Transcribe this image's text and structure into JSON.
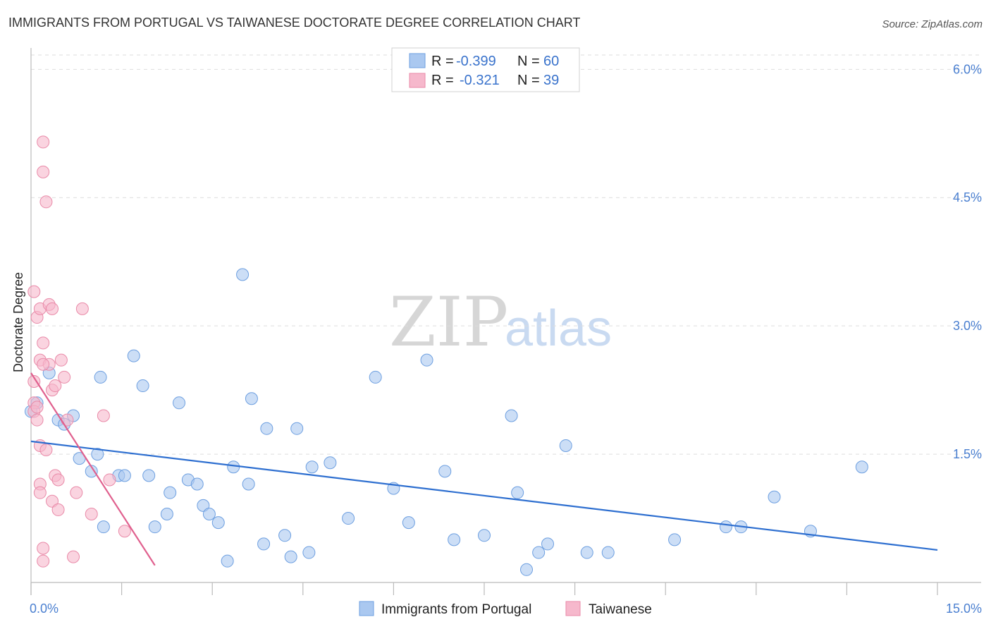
{
  "title": "IMMIGRANTS FROM PORTUGAL VS TAIWANESE DOCTORATE DEGREE CORRELATION CHART",
  "source": "Source: ZipAtlas.com",
  "watermark": {
    "zip": "ZIP",
    "atlas": "atlas"
  },
  "legend_top": [
    {
      "r_label": "R =",
      "r_value": "-0.399",
      "n_label": "N =",
      "n_value": "60"
    },
    {
      "r_label": "R =",
      "r_value": "-0.321",
      "n_label": "N =",
      "n_value": "39"
    }
  ],
  "legend_bottom": [
    "Immigrants from Portugal",
    "Taiwanese"
  ],
  "colors": {
    "blue_fill": "#aac8f0",
    "blue_stroke": "#6d9fe0",
    "blue_line": "#2e6fd0",
    "pink_fill": "#f6b8cc",
    "pink_stroke": "#e98aa8",
    "pink_line": "#e0608e",
    "grid": "#dddddd",
    "axis": "#bbbbbb",
    "tick_label": "#4a7fd0"
  },
  "chart_data": {
    "type": "scatter",
    "title": "IMMIGRANTS FROM PORTUGAL VS TAIWANESE DOCTORATE DEGREE CORRELATION CHART",
    "xlabel": "",
    "ylabel": "Doctorate Degree",
    "xlim": [
      0,
      15
    ],
    "ylim": [
      0,
      6.25
    ],
    "x_tick_labels": [
      "0.0%",
      "15.0%"
    ],
    "y_ticks": [
      1.5,
      3.0,
      4.5,
      6.0
    ],
    "y_tick_labels": [
      "1.5%",
      "3.0%",
      "4.5%",
      "6.0%"
    ],
    "grid": "horizontal dashed",
    "legend_position": "top-center",
    "series": [
      {
        "name": "Immigrants from Portugal",
        "color": "#aac8f0",
        "r": -0.399,
        "n": 60,
        "points": [
          [
            0.0,
            2.0
          ],
          [
            0.1,
            2.1
          ],
          [
            0.3,
            2.45
          ],
          [
            0.45,
            1.9
          ],
          [
            0.55,
            1.85
          ],
          [
            0.7,
            1.95
          ],
          [
            0.8,
            1.45
          ],
          [
            1.0,
            1.3
          ],
          [
            1.1,
            1.5
          ],
          [
            1.15,
            2.4
          ],
          [
            1.2,
            0.65
          ],
          [
            1.45,
            1.25
          ],
          [
            1.55,
            1.25
          ],
          [
            1.7,
            2.65
          ],
          [
            1.85,
            2.3
          ],
          [
            1.95,
            1.25
          ],
          [
            2.05,
            0.65
          ],
          [
            2.25,
            0.8
          ],
          [
            2.3,
            1.05
          ],
          [
            2.45,
            2.1
          ],
          [
            2.6,
            1.2
          ],
          [
            2.75,
            1.15
          ],
          [
            2.85,
            0.9
          ],
          [
            2.95,
            0.8
          ],
          [
            3.1,
            0.7
          ],
          [
            3.25,
            0.25
          ],
          [
            3.35,
            1.35
          ],
          [
            3.5,
            3.6
          ],
          [
            3.6,
            1.15
          ],
          [
            3.65,
            2.15
          ],
          [
            3.85,
            0.45
          ],
          [
            3.9,
            1.8
          ],
          [
            4.2,
            0.55
          ],
          [
            4.3,
            0.3
          ],
          [
            4.4,
            1.8
          ],
          [
            4.6,
            0.35
          ],
          [
            4.65,
            1.35
          ],
          [
            4.95,
            1.4
          ],
          [
            5.25,
            0.75
          ],
          [
            5.7,
            2.4
          ],
          [
            6.0,
            1.1
          ],
          [
            6.25,
            0.7
          ],
          [
            6.55,
            2.6
          ],
          [
            6.85,
            1.3
          ],
          [
            7.0,
            0.5
          ],
          [
            7.5,
            0.55
          ],
          [
            7.95,
            1.95
          ],
          [
            8.05,
            1.05
          ],
          [
            8.2,
            0.15
          ],
          [
            8.4,
            0.35
          ],
          [
            8.55,
            0.45
          ],
          [
            8.85,
            1.6
          ],
          [
            9.2,
            0.35
          ],
          [
            9.55,
            0.35
          ],
          [
            10.65,
            0.5
          ],
          [
            11.5,
            0.65
          ],
          [
            11.75,
            0.65
          ],
          [
            12.3,
            1.0
          ],
          [
            12.9,
            0.6
          ],
          [
            13.75,
            1.35
          ]
        ],
        "trend": {
          "x": [
            0.0,
            15.0
          ],
          "y": [
            1.65,
            0.38
          ]
        }
      },
      {
        "name": "Taiwanese",
        "color": "#f6b8cc",
        "r": -0.321,
        "n": 39,
        "points": [
          [
            0.05,
            3.4
          ],
          [
            0.05,
            2.35
          ],
          [
            0.05,
            2.1
          ],
          [
            0.05,
            2.0
          ],
          [
            0.1,
            3.1
          ],
          [
            0.1,
            1.9
          ],
          [
            0.15,
            3.2
          ],
          [
            0.15,
            2.6
          ],
          [
            0.15,
            1.6
          ],
          [
            0.15,
            1.15
          ],
          [
            0.15,
            1.05
          ],
          [
            0.2,
            5.15
          ],
          [
            0.2,
            4.8
          ],
          [
            0.2,
            2.8
          ],
          [
            0.2,
            0.4
          ],
          [
            0.2,
            0.25
          ],
          [
            0.25,
            4.45
          ],
          [
            0.25,
            1.55
          ],
          [
            0.3,
            3.25
          ],
          [
            0.3,
            2.55
          ],
          [
            0.35,
            3.2
          ],
          [
            0.35,
            2.25
          ],
          [
            0.35,
            0.95
          ],
          [
            0.4,
            2.3
          ],
          [
            0.4,
            1.25
          ],
          [
            0.45,
            1.2
          ],
          [
            0.45,
            0.85
          ],
          [
            0.5,
            2.6
          ],
          [
            0.55,
            2.4
          ],
          [
            0.6,
            1.9
          ],
          [
            0.7,
            0.3
          ],
          [
            0.75,
            1.05
          ],
          [
            0.85,
            3.2
          ],
          [
            1.0,
            0.8
          ],
          [
            1.2,
            1.95
          ],
          [
            1.3,
            1.2
          ],
          [
            1.55,
            0.6
          ],
          [
            0.1,
            2.05
          ],
          [
            0.2,
            2.55
          ]
        ],
        "trend": {
          "x": [
            0.0,
            2.05
          ],
          "y": [
            2.45,
            0.2
          ]
        }
      }
    ]
  }
}
